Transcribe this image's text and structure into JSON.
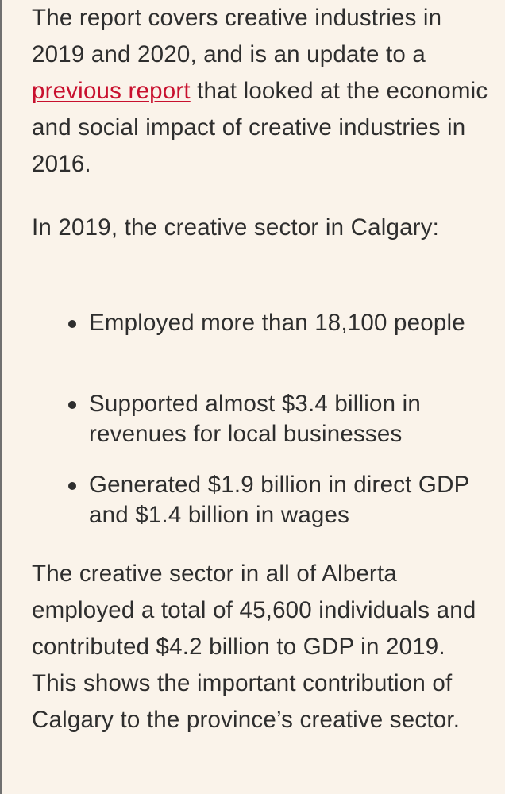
{
  "para1": {
    "before_link": "The report covers creative industries in 2019 and 2020, and is an update to a ",
    "link_text": "previous report",
    "after_link": " that looked at the economic and social impact of creative industries in 2016."
  },
  "para2": {
    "text": "In 2019, the creative sector in Calgary:"
  },
  "bullets": [
    "Employed more than 18,100 people",
    "Supported almost $3.4 billion in revenues for local businesses",
    "Generated $1.9 billion in direct GDP and $1.4 billion in wages"
  ],
  "para3": {
    "text": "The creative sector in all of Alberta employed a total of 45,600 individuals and contributed $4.2 billion to GDP in 2019. This shows the important contribution of Calgary to the province’s creative sector."
  },
  "colors": {
    "background": "#faf3ea",
    "text": "#2e2e2e",
    "link": "#c8102e"
  }
}
